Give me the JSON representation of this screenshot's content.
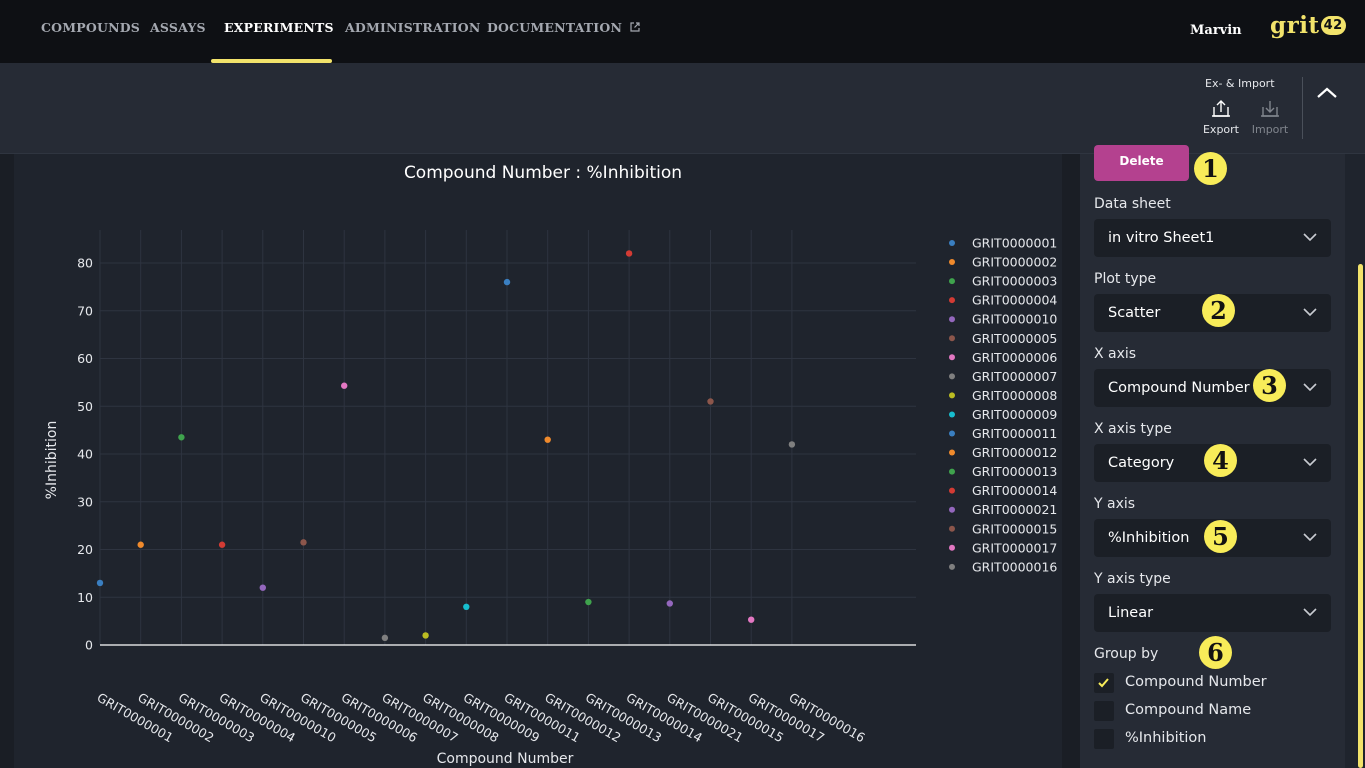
{
  "nav": {
    "items": [
      "COMPOUNDS",
      "ASSAYS",
      "EXPERIMENTS",
      "ADMINISTRATION",
      "DOCUMENTATION"
    ],
    "active": "EXPERIMENTS",
    "user": "Marvin",
    "logo_text": "grit",
    "logo_number": "42",
    "accent_color": "#f2e36b"
  },
  "toolbar": {
    "group_label": "Ex- & Import",
    "export_label": "Export",
    "import_label": "Import"
  },
  "settings": {
    "delete_label": "Delete",
    "data_sheet": {
      "label": "Data sheet",
      "value": "in vitro Sheet1"
    },
    "plot_type": {
      "label": "Plot type",
      "value": "Scatter"
    },
    "x_axis": {
      "label": "X axis",
      "value": "Compound Number"
    },
    "x_axis_type": {
      "label": "X axis type",
      "value": "Category"
    },
    "y_axis": {
      "label": "Y axis",
      "value": "%Inhibition"
    },
    "y_axis_type": {
      "label": "Y axis type",
      "value": "Linear"
    },
    "group_by": {
      "label": "Group by",
      "options": [
        {
          "label": "Compound Number",
          "checked": true
        },
        {
          "label": "Compound Name",
          "checked": false
        },
        {
          "label": "%Inhibition",
          "checked": false
        }
      ]
    },
    "badges": [
      "1",
      "2",
      "3",
      "4",
      "5",
      "6"
    ],
    "delete_color": "#b4418f"
  },
  "chart_data": {
    "type": "scatter",
    "title": "Compound Number : %Inhibition",
    "xlabel": "Compound Number",
    "ylabel": "%Inhibition",
    "ylim": [
      -3,
      87
    ],
    "yticks": [
      0,
      10,
      20,
      30,
      40,
      50,
      60,
      70,
      80
    ],
    "grid": true,
    "legend_position": "right",
    "categories": [
      "GRIT0000001",
      "GRIT0000002",
      "GRIT0000003",
      "GRIT0000004",
      "GRIT0000010",
      "GRIT0000005",
      "GRIT0000006",
      "GRIT0000007",
      "GRIT0000008",
      "GRIT0000009",
      "GRIT0000011",
      "GRIT0000012",
      "GRIT0000013",
      "GRIT0000014",
      "GRIT0000021",
      "GRIT0000015",
      "GRIT0000017",
      "GRIT0000016"
    ],
    "series": [
      {
        "name": "GRIT0000001",
        "x": "GRIT0000001",
        "y": 13,
        "color": "#3a7fc1"
      },
      {
        "name": "GRIT0000002",
        "x": "GRIT0000002",
        "y": 21,
        "color": "#f08a2c"
      },
      {
        "name": "GRIT0000003",
        "x": "GRIT0000003",
        "y": 43.5,
        "color": "#3fa34d"
      },
      {
        "name": "GRIT0000004",
        "x": "GRIT0000004",
        "y": 21,
        "color": "#d33b34"
      },
      {
        "name": "GRIT0000010",
        "x": "GRIT0000010",
        "y": 12,
        "color": "#9467bd"
      },
      {
        "name": "GRIT0000005",
        "x": "GRIT0000005",
        "y": 21.5,
        "color": "#8c564b"
      },
      {
        "name": "GRIT0000006",
        "x": "GRIT0000006",
        "y": 54.3,
        "color": "#e377c2"
      },
      {
        "name": "GRIT0000007",
        "x": "GRIT0000007",
        "y": 1.5,
        "color": "#7f7f7f"
      },
      {
        "name": "GRIT0000008",
        "x": "GRIT0000008",
        "y": 2,
        "color": "#bcbd22"
      },
      {
        "name": "GRIT0000009",
        "x": "GRIT0000009",
        "y": 8,
        "color": "#17becf"
      },
      {
        "name": "GRIT0000011",
        "x": "GRIT0000011",
        "y": 76,
        "color": "#3a7fc1"
      },
      {
        "name": "GRIT0000012",
        "x": "GRIT0000012",
        "y": 43,
        "color": "#f08a2c"
      },
      {
        "name": "GRIT0000013",
        "x": "GRIT0000013",
        "y": 9,
        "color": "#3fa34d"
      },
      {
        "name": "GRIT0000014",
        "x": "GRIT0000014",
        "y": 82,
        "color": "#d33b34"
      },
      {
        "name": "GRIT0000021",
        "x": "GRIT0000021",
        "y": 8.7,
        "color": "#9467bd"
      },
      {
        "name": "GRIT0000015",
        "x": "GRIT0000015",
        "y": 51,
        "color": "#8c564b"
      },
      {
        "name": "GRIT0000017",
        "x": "GRIT0000017",
        "y": 5.3,
        "color": "#e377c2"
      },
      {
        "name": "GRIT0000016",
        "x": "GRIT0000016",
        "y": 42,
        "color": "#7f7f7f"
      }
    ],
    "legend": [
      "GRIT0000001",
      "GRIT0000002",
      "GRIT0000003",
      "GRIT0000004",
      "GRIT0000010",
      "GRIT0000005",
      "GRIT0000006",
      "GRIT0000007",
      "GRIT0000008",
      "GRIT0000009",
      "GRIT0000011",
      "GRIT0000012",
      "GRIT0000013",
      "GRIT0000014",
      "GRIT0000021",
      "GRIT0000015",
      "GRIT0000017",
      "GRIT0000016"
    ]
  }
}
